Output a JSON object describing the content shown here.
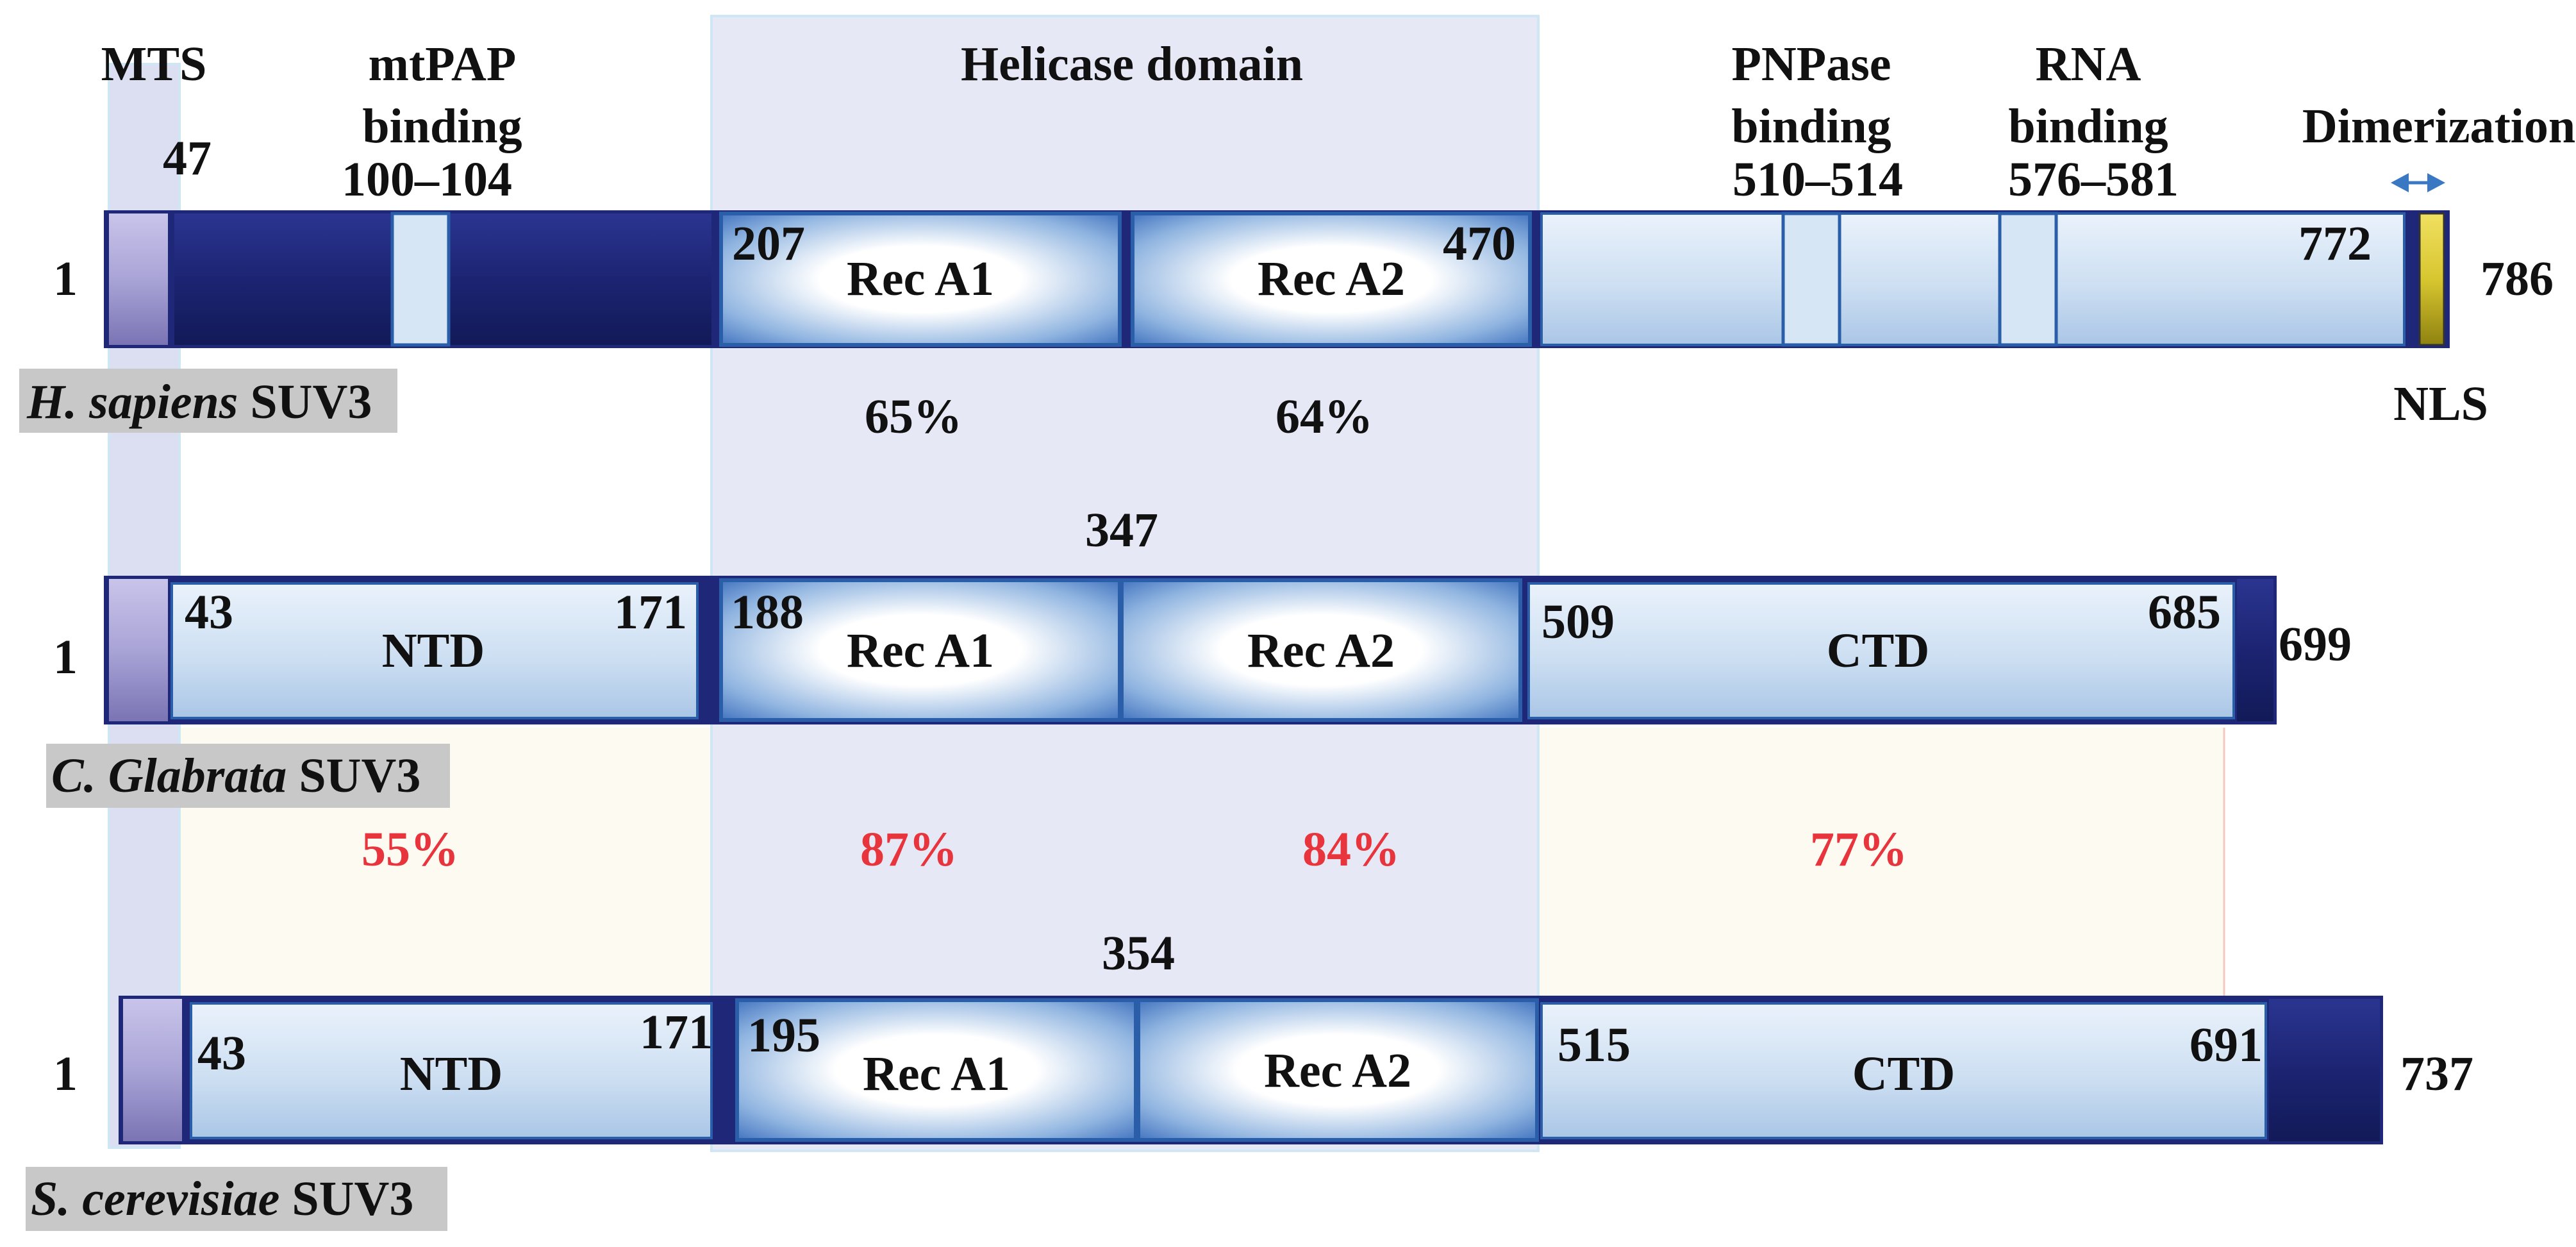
{
  "header": {
    "mts": "MTS",
    "mtpap_line1": "mtPAP",
    "mtpap_line2": "binding",
    "helicase": "Helicase domain",
    "pnpase_line1": "PNPase",
    "pnpase_line2": "binding",
    "rna_line1": "RNA",
    "rna_line2": "binding",
    "dimerization": "Dimerization"
  },
  "human": {
    "start": "1",
    "end": "786",
    "pos_47": "47",
    "mtpap_range": "100–104",
    "pnpase_range": "510–514",
    "rna_range": "576–581",
    "pos_207": "207",
    "pos_470": "470",
    "pos_772": "772",
    "reca1": "Rec A1",
    "reca2": "Rec A2",
    "nls": "NLS",
    "species_italic": "H. sapiens",
    "species_protein": "SUV3"
  },
  "identity_human_vs_yeast": {
    "reca1": "65%",
    "reca2": "64%"
  },
  "glabrata": {
    "start": "1",
    "end": "699",
    "pos_43": "43",
    "pos_171": "171",
    "pos_188": "188",
    "pos_347": "347",
    "pos_509": "509",
    "pos_685": "685",
    "ntd": "NTD",
    "reca1": "Rec A1",
    "reca2": "Rec A2",
    "ctd": "CTD",
    "species_italic": "C. Glabrata",
    "species_protein": "SUV3"
  },
  "identity_glabrata_vs_cerevisiae": {
    "ntd": "55%",
    "reca1": "87%",
    "reca2": "84%",
    "ctd": "77%"
  },
  "cerevisiae": {
    "start": "1",
    "end": "737",
    "pos_43": "43",
    "pos_171": "171",
    "pos_195": "195",
    "pos_354": "354",
    "pos_515": "515",
    "pos_691": "691",
    "ntd": "NTD",
    "reca1": "Rec A1",
    "reca2": "Rec A2",
    "ctd": "CTD",
    "species_italic": "S. cerevisiae",
    "species_protein": "SUV3"
  },
  "colors": {
    "dark_navy": "#1f2779",
    "light_blue": "#cfe0f2",
    "mts_lavender": "#a39fcf",
    "helicase_band": "#e6e8f6",
    "identity_red": "#e8343c",
    "identity_band": "#fdfaf2",
    "nls_yellow": "#d8c630",
    "species_tag_gray": "#c8c8c8"
  }
}
